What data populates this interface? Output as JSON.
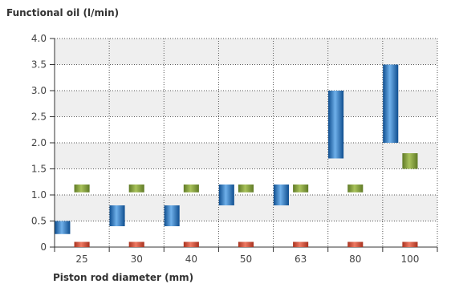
{
  "chart_data": {
    "type": "bar",
    "title": "Functional oil (l/min)",
    "xlabel": "Piston rod diameter (mm)",
    "ylabel": "",
    "ylim": [
      0,
      4.0
    ],
    "yticks": [
      "0",
      "0.5",
      "1.0",
      "1.5",
      "2.0",
      "2.5",
      "3.0",
      "3.5",
      "4.0"
    ],
    "categories": [
      "25",
      "30",
      "40",
      "50",
      "63",
      "80",
      "100"
    ],
    "grid": true,
    "legend": "none",
    "series": [
      {
        "color": "#1f6fb8",
        "ranges": [
          [
            0.25,
            0.5
          ],
          [
            0.4,
            0.8
          ],
          [
            0.4,
            0.8
          ],
          [
            0.8,
            1.2
          ],
          [
            0.8,
            1.2
          ],
          [
            1.7,
            3.0
          ],
          [
            2.0,
            3.5
          ]
        ]
      },
      {
        "color": "#7d9a3a",
        "ranges": [
          [
            1.05,
            1.2
          ],
          [
            1.05,
            1.2
          ],
          [
            1.05,
            1.2
          ],
          [
            1.05,
            1.2
          ],
          [
            1.05,
            1.2
          ],
          [
            1.05,
            1.2
          ],
          [
            1.5,
            1.8
          ]
        ]
      },
      {
        "color": "#c94a3a",
        "ranges": [
          [
            0.0,
            0.1
          ],
          [
            0.0,
            0.1
          ],
          [
            0.0,
            0.1
          ],
          [
            0.0,
            0.1
          ],
          [
            0.0,
            0.1
          ],
          [
            0.0,
            0.1
          ],
          [
            0.0,
            0.1
          ]
        ]
      }
    ]
  }
}
